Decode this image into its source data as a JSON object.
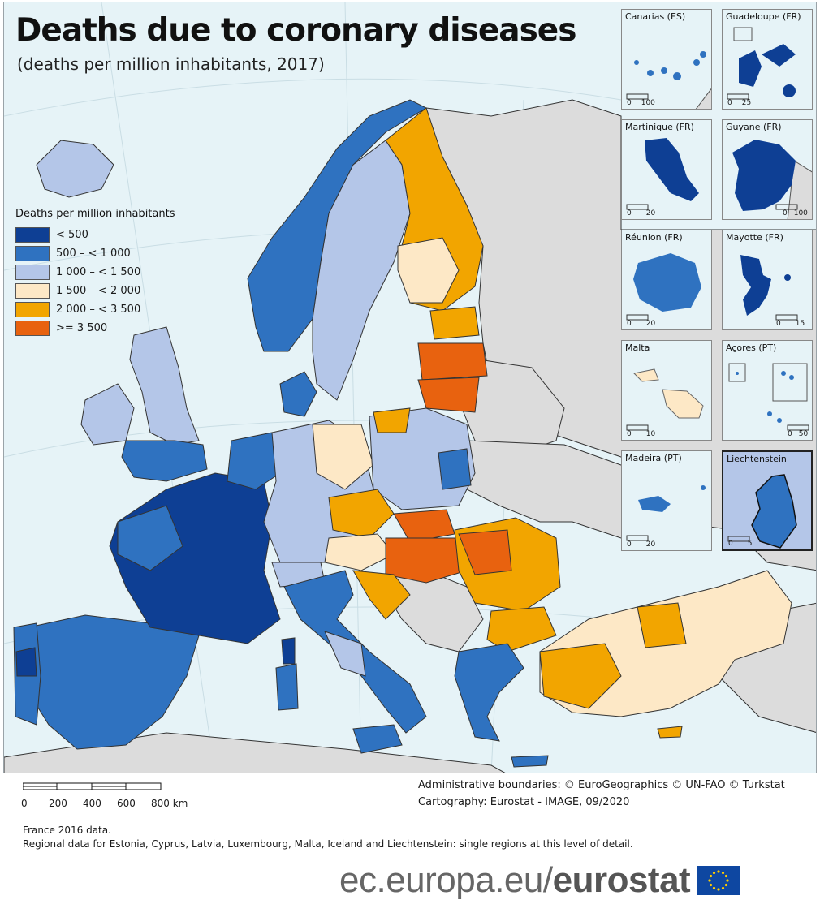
{
  "title": "Deaths due to coronary diseases",
  "subtitle": "(deaths per million inhabitants, 2017)",
  "legend": {
    "title": "Deaths per million inhabitants",
    "items": [
      {
        "label": "< 500",
        "color": "#0e3f94"
      },
      {
        "label": "500 – < 1 000",
        "color": "#2f72c0"
      },
      {
        "label": "1 000 – < 1 500",
        "color": "#b4c6e8"
      },
      {
        "label": "1 500 – < 2 000",
        "color": "#fde8c6"
      },
      {
        "label": "2 000 – < 3 500",
        "color": "#f2a500"
      },
      {
        "label": ">= 3 500",
        "color": "#e8620f"
      }
    ]
  },
  "colors": {
    "sea": "#e6f3f7",
    "non_eu_land": "#dcdcdc",
    "borders": "#222222"
  },
  "insets": [
    {
      "name": "Canarias (ES)",
      "scale_labels": [
        "0",
        "100"
      ],
      "color": "#2f72c0"
    },
    {
      "name": "Guadeloupe (FR)",
      "scale_labels": [
        "0",
        "25"
      ],
      "color": "#0e3f94"
    },
    {
      "name": "Martinique (FR)",
      "scale_labels": [
        "0",
        "20"
      ],
      "color": "#0e3f94"
    },
    {
      "name": "Guyane (FR)",
      "scale_labels": [
        "0",
        "100"
      ],
      "color": "#0e3f94"
    },
    {
      "name": "Réunion (FR)",
      "scale_labels": [
        "0",
        "20"
      ],
      "color": "#2f72c0"
    },
    {
      "name": "Mayotte (FR)",
      "scale_labels": [
        "0",
        "15"
      ],
      "color": "#0e3f94"
    },
    {
      "name": "Malta",
      "scale_labels": [
        "0",
        "10"
      ],
      "color": "#fde8c6"
    },
    {
      "name": "Açores (PT)",
      "scale_labels": [
        "0",
        "50"
      ],
      "color": "#2f72c0"
    },
    {
      "name": "Madeira (PT)",
      "scale_labels": [
        "0",
        "20"
      ],
      "color": "#2f72c0"
    },
    {
      "name": "Liechtenstein",
      "scale_labels": [
        "0",
        "5"
      ],
      "color": "#2f72c0"
    }
  ],
  "scale": {
    "labels": [
      "0",
      "200",
      "400",
      "600",
      "800 km"
    ]
  },
  "credits": [
    "Administrative boundaries: © EuroGeographics © UN-FAO © Turkstat",
    "Cartography: Eurostat - IMAGE, 09/2020"
  ],
  "notes": [
    "France 2016 data.",
    "Regional data for Estonia, Cyprus, Latvia, Luxembourg, Malta, Iceland and Liechtenstein: single regions at this level of detail."
  ],
  "branding": {
    "url_prefix": "ec.europa.eu/",
    "url_bold": "eurostat"
  }
}
